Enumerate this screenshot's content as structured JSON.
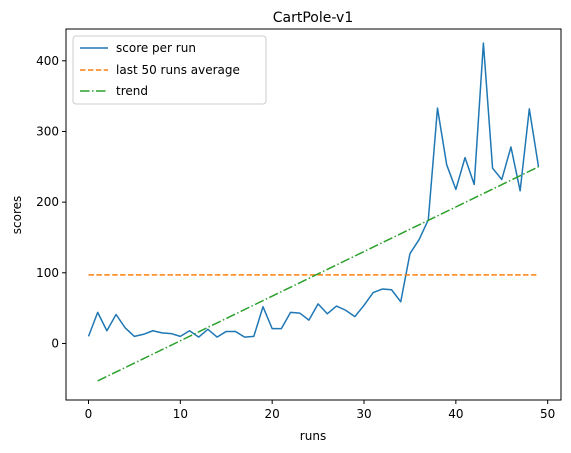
{
  "chart_data": {
    "type": "line",
    "title": "CartPole-v1",
    "xlabel": "runs",
    "ylabel": "scores",
    "xlim": [
      -2.45,
      51.45
    ],
    "ylim": [
      -80,
      445
    ],
    "xticks": [
      0,
      10,
      20,
      30,
      40,
      50
    ],
    "yticks": [
      0,
      100,
      200,
      300,
      400
    ],
    "grid": false,
    "legend_position": "upper left",
    "series": [
      {
        "name": "score per run",
        "style": "solid",
        "color": "#1f77b4",
        "x": [
          0,
          1,
          2,
          3,
          4,
          5,
          6,
          7,
          8,
          9,
          10,
          11,
          12,
          13,
          14,
          15,
          16,
          17,
          18,
          19,
          20,
          21,
          22,
          23,
          24,
          25,
          26,
          27,
          28,
          29,
          30,
          31,
          32,
          33,
          34,
          35,
          36,
          37,
          38,
          39,
          40,
          41,
          42,
          43,
          44,
          45,
          46,
          47,
          48,
          49
        ],
        "y": [
          10,
          44,
          18,
          41,
          22,
          10,
          13,
          18,
          15,
          14,
          10,
          18,
          9,
          20,
          9,
          17,
          17,
          9,
          10,
          52,
          21,
          21,
          44,
          43,
          33,
          56,
          42,
          53,
          47,
          38,
          54,
          72,
          77,
          76,
          59,
          127,
          147,
          175,
          333,
          253,
          218,
          263,
          225,
          425,
          248,
          232,
          278,
          216,
          332,
          250
        ]
      },
      {
        "name": "last 50 runs average",
        "style": "dashed",
        "color": "#ff7f0e",
        "x": [
          0,
          49
        ],
        "y": [
          97,
          97
        ]
      },
      {
        "name": "trend",
        "style": "dashdot",
        "color": "#2ca02c",
        "x": [
          1,
          49
        ],
        "y": [
          -53,
          250
        ]
      }
    ]
  }
}
